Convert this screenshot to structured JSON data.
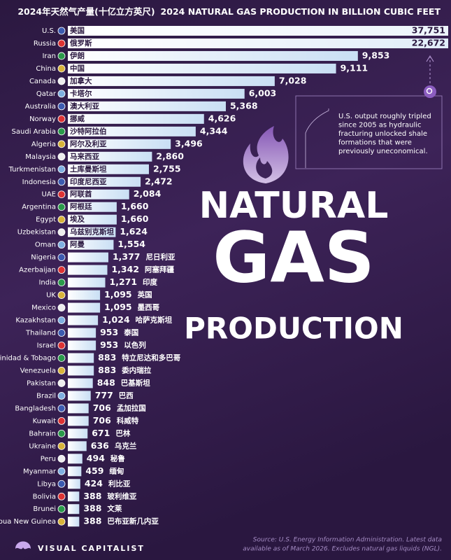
{
  "chart_data": {
    "type": "bar",
    "title_zh": "2024年天然气产量(十亿立方英尺)",
    "title": "2024 NATURAL GAS PRODUCTION IN BILLION CUBIC FEET",
    "headline": [
      "NATURAL",
      "GAS",
      "PRODUCTION"
    ],
    "categories": [
      "U.S.",
      "Russia",
      "Iran",
      "China",
      "Canada",
      "Qatar",
      "Australia",
      "Norway",
      "Saudi Arabia",
      "Algeria",
      "Malaysia",
      "Turkmenistan",
      "Indonesia",
      "UAE",
      "Argentina",
      "Egypt",
      "Uzbekistan",
      "Oman",
      "Nigeria",
      "Azerbaijan",
      "India",
      "UK",
      "Mexico",
      "Kazakhstan",
      "Thailand",
      "Israel",
      "Trinidad & Tobago",
      "Venezuela",
      "Pakistan",
      "Brazil",
      "Bangladesh",
      "Kuwait",
      "Bahrain",
      "Ukraine",
      "Peru",
      "Myanmar",
      "Libya",
      "Bolivia",
      "Brunei",
      "Papua New Guinea"
    ],
    "categories_zh": [
      "美国",
      "俄罗斯",
      "伊朗",
      "中国",
      "加拿大",
      "卡塔尔",
      "澳大利亚",
      "挪威",
      "沙特阿拉伯",
      "阿尔及利亚",
      "马来西亚",
      "土库曼斯坦",
      "印度尼西亚",
      "阿联酋",
      "阿根廷",
      "埃及",
      "乌兹别克斯坦",
      "阿曼",
      "尼日利亚",
      "阿塞拜疆",
      "印度",
      "英国",
      "墨西哥",
      "哈萨克斯坦",
      "泰国",
      "以色列",
      "特立尼达和多巴哥",
      "委内瑞拉",
      "巴基斯坦",
      "巴西",
      "孟加拉国",
      "科威特",
      "巴林",
      "乌克兰",
      "秘鲁",
      "缅甸",
      "利比亚",
      "玻利维亚",
      "文莱",
      "巴布亚新几内亚"
    ],
    "values": [
      37751,
      22672,
      9853,
      9111,
      7028,
      6003,
      5368,
      4626,
      4344,
      3496,
      2860,
      2755,
      2472,
      2084,
      1660,
      1660,
      1624,
      1554,
      1377,
      1342,
      1271,
      1095,
      1095,
      1024,
      953,
      953,
      883,
      883,
      848,
      777,
      706,
      706,
      671,
      636,
      494,
      459,
      424,
      388,
      388,
      388
    ],
    "value_labels": [
      "37,751",
      "22,672",
      "9,853",
      "9,111",
      "7,028",
      "6,003",
      "5,368",
      "4,626",
      "4,344",
      "3,496",
      "2,860",
      "2,755",
      "2,472",
      "2,084",
      "1,660",
      "1,660",
      "1,624",
      "1,554",
      "1,377",
      "1,342",
      "1,271",
      "1,095",
      "1,095",
      "1,024",
      "953",
      "953",
      "883",
      "883",
      "848",
      "777",
      "706",
      "706",
      "671",
      "636",
      "494",
      "459",
      "424",
      "388",
      "388",
      "388"
    ],
    "color": "#d6e6f6",
    "annotation": [
      "U.S. output roughly tripled",
      "since 2005 as hydraulic",
      "fracturing unlocked shale",
      "formations that were",
      "previously uneconomical."
    ],
    "source": [
      "Source: U.S. Energy Information Administration. Latest data",
      "available as of March 2026. Excludes natural gas liquids (NGL)."
    ],
    "brand": "VISUAL CAPITALIST"
  }
}
